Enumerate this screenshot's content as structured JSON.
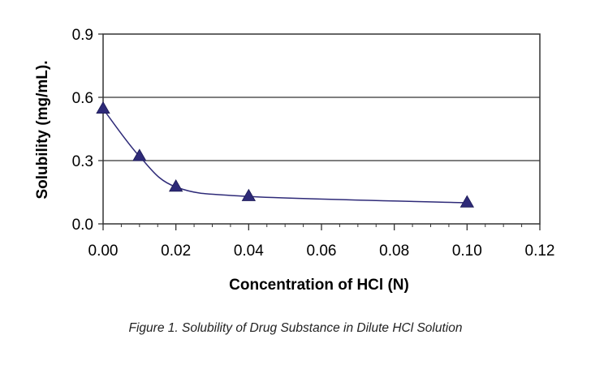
{
  "chart_data": {
    "type": "line",
    "xlabel": "Concentration of HCl (N)",
    "ylabel": "Solubility (mg/mL).",
    "xlim": [
      0,
      0.12
    ],
    "ylim": [
      0,
      0.9
    ],
    "x_ticks": [
      "0.00",
      "0.02",
      "0.04",
      "0.06",
      "0.08",
      "0.10",
      "0.12"
    ],
    "y_ticks": [
      "0.0",
      "0.3",
      "0.6",
      "0.9"
    ],
    "grid": "horizontal",
    "marker": "triangle",
    "series": [
      {
        "x": [
          0.0,
          0.01,
          0.02,
          0.04,
          0.1
        ],
        "y": [
          0.545,
          0.32,
          0.175,
          0.13,
          0.1
        ],
        "color": "#2e2a78"
      }
    ]
  },
  "caption": "Figure 1. Solubility of Drug Substance in Dilute HCl Solution"
}
